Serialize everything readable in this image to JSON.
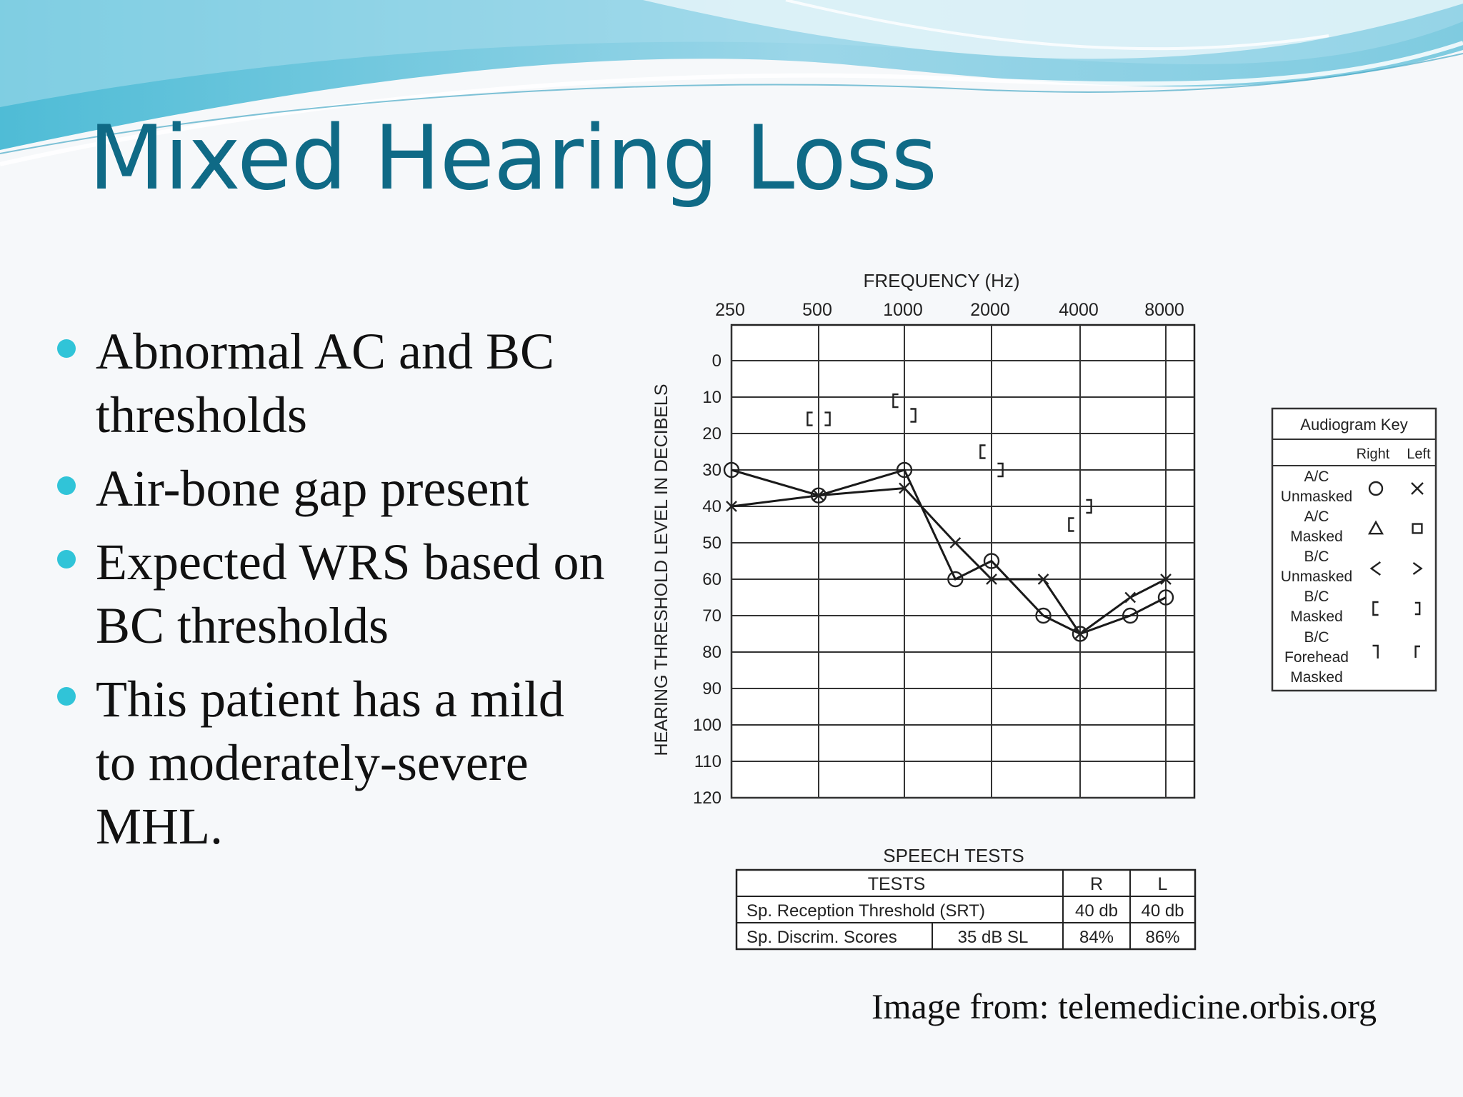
{
  "slide": {
    "title": "Mixed Hearing Loss",
    "bullets": [
      "Abnormal AC and BC thresholds",
      "Air-bone gap present",
      "Expected WRS based on BC thresholds",
      "This patient has a mild to moderately-severe MHL."
    ],
    "credit": "Image from: telemedicine.orbis.org",
    "colors": {
      "title": "#0f6a86",
      "bullet": "#30c4d8",
      "banner_dark": "#5cc3dc",
      "banner_light": "#cdebf4"
    }
  },
  "chart_data": {
    "type": "line",
    "xlabel": "FREQUENCY (Hz)",
    "ylabel": "HEARING THRESHOLD LEVEL IN DECIBELS",
    "x": [
      "250",
      "500",
      "1000",
      "2000",
      "4000",
      "8000"
    ],
    "yticks": [
      "0",
      "10",
      "20",
      "30",
      "40",
      "50",
      "60",
      "70",
      "80",
      "90",
      "100",
      "110",
      "120"
    ],
    "ylim": [
      0,
      120
    ],
    "y_inverted": true,
    "grid": true,
    "series": [
      {
        "symbol": "circle",
        "ear": "Right",
        "points": [
          [
            250,
            30
          ],
          [
            500,
            37
          ],
          [
            1000,
            30
          ],
          [
            1500,
            60
          ],
          [
            2000,
            55
          ],
          [
            3000,
            70
          ],
          [
            4000,
            75
          ],
          [
            6000,
            70
          ],
          [
            8000,
            65
          ]
        ]
      },
      {
        "symbol": "x",
        "ear": "Left",
        "points": [
          [
            250,
            40
          ],
          [
            500,
            37
          ],
          [
            1000,
            35
          ],
          [
            1500,
            50
          ],
          [
            2000,
            60
          ],
          [
            3000,
            60
          ],
          [
            4000,
            75
          ],
          [
            6000,
            65
          ],
          [
            8000,
            60
          ]
        ]
      },
      {
        "symbol": "bracket-left",
        "ear": "Right",
        "points": [
          [
            500,
            16
          ],
          [
            1000,
            11
          ],
          [
            2000,
            25
          ],
          [
            4000,
            45
          ]
        ]
      },
      {
        "symbol": "bracket-right",
        "ear": "Left",
        "points": [
          [
            500,
            16
          ],
          [
            1000,
            15
          ],
          [
            2000,
            30
          ],
          [
            4000,
            40
          ]
        ]
      }
    ],
    "legend": {
      "placement": "right",
      "title": "Audiogram Key",
      "col_right": "Right",
      "col_left": "Left",
      "rows": [
        {
          "label": [
            "A/C",
            "Unmasked"
          ],
          "right": "circle",
          "left": "x"
        },
        {
          "label": [
            "A/C",
            "Masked"
          ],
          "right": "triangle",
          "left": "square"
        },
        {
          "label": [
            "B/C",
            "Unmasked"
          ],
          "right": "lt",
          "left": "gt"
        },
        {
          "label": [
            "B/C",
            "Masked"
          ],
          "right": "bracket-left",
          "left": "bracket-right"
        },
        {
          "label": [
            "B/C",
            "Forehead",
            "Masked"
          ],
          "right": "forehead-right",
          "left": "forehead-left"
        }
      ]
    },
    "speech_tests": {
      "title": "SPEECH TESTS",
      "headers": [
        "TESTS",
        "R",
        "L"
      ],
      "rows": [
        {
          "test": "Sp. Reception Threshold (SRT)",
          "level": "",
          "R": "40 db",
          "L": "40 db"
        },
        {
          "test": "Sp. Discrim. Scores",
          "level": "35 dB SL",
          "R": "84%",
          "L": "86%"
        }
      ]
    }
  }
}
